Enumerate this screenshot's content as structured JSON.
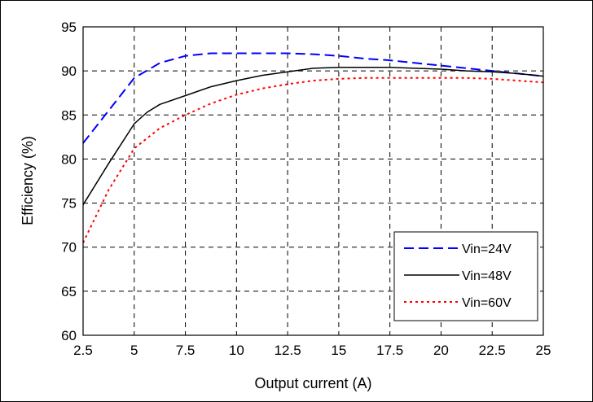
{
  "chart_data": {
    "type": "line",
    "title": "",
    "xlabel": "Output current (A)",
    "ylabel": "Efficiency (%)",
    "xlim": [
      2.5,
      25
    ],
    "ylim": [
      60,
      95
    ],
    "x_ticks": [
      "2.5",
      "5",
      "7.5",
      "10",
      "12.5",
      "15",
      "17.5",
      "20",
      "22.5",
      "25"
    ],
    "y_ticks": [
      "60",
      "65",
      "70",
      "75",
      "80",
      "85",
      "90",
      "95"
    ],
    "grid": true,
    "legend_position": "bottom-right",
    "series": [
      {
        "name": "Vin=24V",
        "color": "#0000ff",
        "line_style": "dashed",
        "points": [
          [
            2.5,
            81.8
          ],
          [
            3.75,
            85.5
          ],
          [
            5,
            89.2
          ],
          [
            6.25,
            90.9
          ],
          [
            7.5,
            91.7
          ],
          [
            8.75,
            92.0
          ],
          [
            10,
            92.0
          ],
          [
            11.25,
            92.0
          ],
          [
            12.5,
            92.0
          ],
          [
            13.75,
            91.9
          ],
          [
            15,
            91.7
          ],
          [
            16.25,
            91.4
          ],
          [
            17.5,
            91.2
          ],
          [
            18.75,
            90.9
          ],
          [
            20,
            90.6
          ],
          [
            21.25,
            90.3
          ],
          [
            22.5,
            90.0
          ],
          [
            23.75,
            89.7
          ],
          [
            25,
            89.4
          ]
        ]
      },
      {
        "name": "Vin=48V",
        "color": "#000000",
        "line_style": "solid",
        "points": [
          [
            2.5,
            74.8
          ],
          [
            3.75,
            79.5
          ],
          [
            5,
            84.0
          ],
          [
            5.625,
            85.3
          ],
          [
            6.25,
            86.2
          ],
          [
            7.5,
            87.2
          ],
          [
            8.75,
            88.2
          ],
          [
            10,
            88.9
          ],
          [
            11.25,
            89.5
          ],
          [
            12.5,
            89.9
          ],
          [
            13.75,
            90.3
          ],
          [
            15,
            90.4
          ],
          [
            16.25,
            90.4
          ],
          [
            17.5,
            90.4
          ],
          [
            18.75,
            90.3
          ],
          [
            20,
            90.2
          ],
          [
            21.25,
            90.0
          ],
          [
            22.5,
            89.9
          ],
          [
            23.75,
            89.7
          ],
          [
            25,
            89.4
          ]
        ]
      },
      {
        "name": "Vin=60V",
        "color": "#ff0000",
        "line_style": "dotted",
        "points": [
          [
            2.5,
            70.5
          ],
          [
            3.75,
            76.5
          ],
          [
            5,
            81.2
          ],
          [
            6.25,
            83.5
          ],
          [
            7.5,
            85.0
          ],
          [
            8.75,
            86.3
          ],
          [
            10,
            87.3
          ],
          [
            11.25,
            88.0
          ],
          [
            12.5,
            88.5
          ],
          [
            13.75,
            88.9
          ],
          [
            15,
            89.1
          ],
          [
            16.25,
            89.2
          ],
          [
            17.5,
            89.2
          ],
          [
            18.75,
            89.2
          ],
          [
            20,
            89.2
          ],
          [
            21.25,
            89.2
          ],
          [
            22.5,
            89.1
          ],
          [
            23.75,
            88.9
          ],
          [
            25,
            88.7
          ]
        ]
      }
    ]
  }
}
